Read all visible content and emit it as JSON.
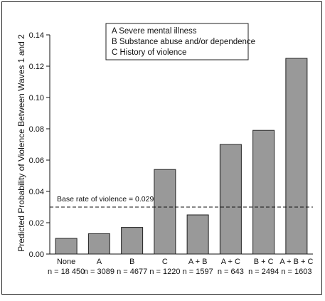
{
  "chart_data": {
    "type": "bar",
    "ylabel": "Predicted Probability of Violence Between Waves 1 and 2",
    "xlabel": "",
    "ylim": [
      0,
      0.14
    ],
    "yticks": [
      "0.00",
      "0.02",
      "0.04",
      "0.06",
      "0.08",
      "0.10",
      "0.12",
      "0.14"
    ],
    "categories": [
      "None",
      "A",
      "B",
      "C",
      "A + B",
      "A + C",
      "B + C",
      "A + B + C"
    ],
    "n_labels": [
      "n = 18 450",
      "n = 3089",
      "n = 4677",
      "n = 1220",
      "n = 1597",
      "n = 643",
      "n = 2494",
      "n = 1603"
    ],
    "values": [
      0.01,
      0.013,
      0.017,
      0.054,
      0.025,
      0.07,
      0.079,
      0.125
    ],
    "bar_color": "#999999",
    "legend": {
      "placement": "top-center",
      "entries": [
        "A  Severe mental illness",
        "B  Substance abuse and/or dependence",
        "C  History of violence"
      ]
    },
    "reference_line": {
      "value": 0.03,
      "label": "Base rate of violence = 0.029",
      "style": "dashed"
    },
    "grid": false
  }
}
